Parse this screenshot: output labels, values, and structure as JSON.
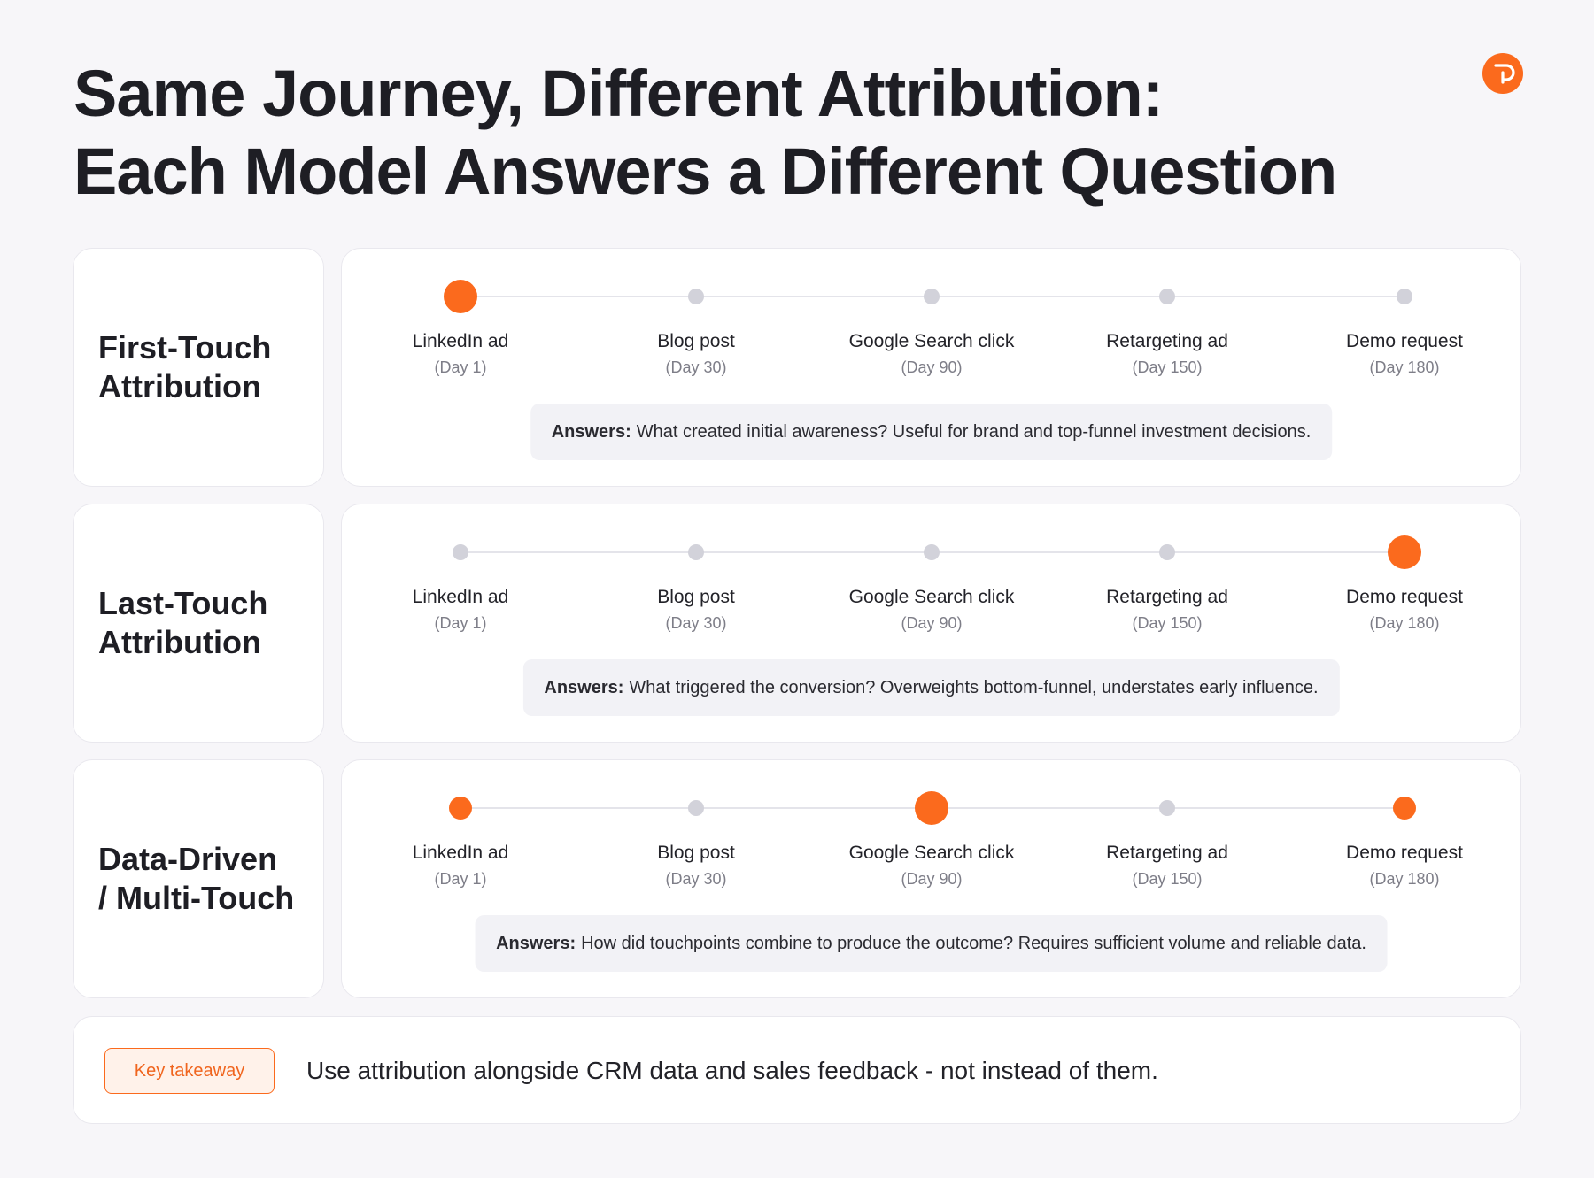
{
  "title": {
    "line1": "Same Journey, Different Attribution:",
    "line2": "Each Model Answers a Different Question"
  },
  "logo": {
    "icon": "brand-logo-icon",
    "color": "#fb6a1d"
  },
  "colors": {
    "accent": "#fb6a1d",
    "inactive": "#d2d2da",
    "background": "#f7f6f9"
  },
  "touchpoints": [
    {
      "name": "LinkedIn ad",
      "day": "(Day 1)"
    },
    {
      "name": "Blog post",
      "day": "(Day 30)"
    },
    {
      "name": "Google Search click",
      "day": "(Day 90)"
    },
    {
      "name": "Retargeting ad",
      "day": "(Day 150)"
    },
    {
      "name": "Demo request",
      "day": "(Day 180)"
    }
  ],
  "models": [
    {
      "label": "First-Touch\nAttribution",
      "credit": [
        "large",
        "none",
        "none",
        "none",
        "none"
      ],
      "answer_prefix": "Answers:",
      "answer": "What created initial awareness? Useful for brand and top-funnel investment decisions."
    },
    {
      "label": "Last-Touch\nAttribution",
      "credit": [
        "none",
        "none",
        "none",
        "none",
        "large"
      ],
      "answer_prefix": "Answers:",
      "answer": "What triggered the conversion? Overweights bottom-funnel, understates early influence."
    },
    {
      "label": "Data-Driven\n/ Multi-Touch",
      "credit": [
        "medium",
        "none",
        "large",
        "none",
        "medium"
      ],
      "answer_prefix": "Answers:",
      "answer": "How did touchpoints combine to produce the outcome? Requires sufficient volume and reliable data."
    }
  ],
  "takeaway": {
    "badge": "Key takeaway",
    "text": "Use attribution alongside CRM data and sales feedback - not instead of them."
  }
}
